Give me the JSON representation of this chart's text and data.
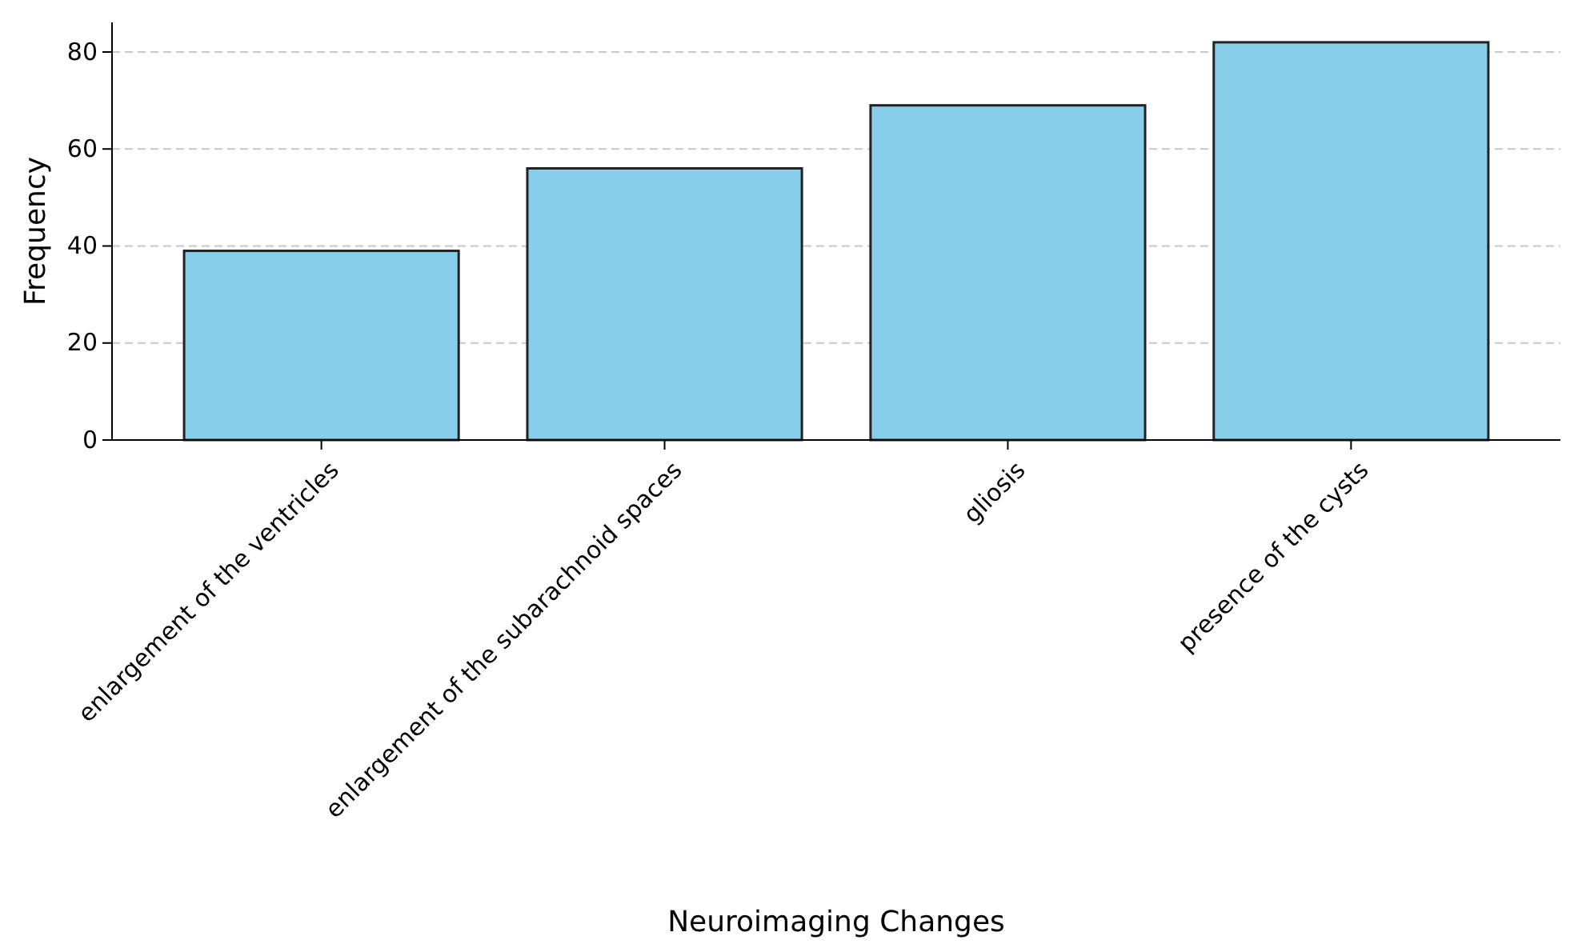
{
  "chart_data": {
    "type": "bar",
    "xlabel": "Neuroimaging Changes",
    "ylabel": "Frequency",
    "categories": [
      "enlargement of the ventricles",
      "enlargement of the subarachnoid spaces",
      "gliosis",
      "presence of the cysts"
    ],
    "values": [
      39,
      56,
      69,
      82
    ],
    "color": "#87ceeb",
    "ylim": [
      0,
      86.1
    ],
    "yticks": [
      0,
      20,
      40,
      60,
      80
    ],
    "grid": "y"
  }
}
